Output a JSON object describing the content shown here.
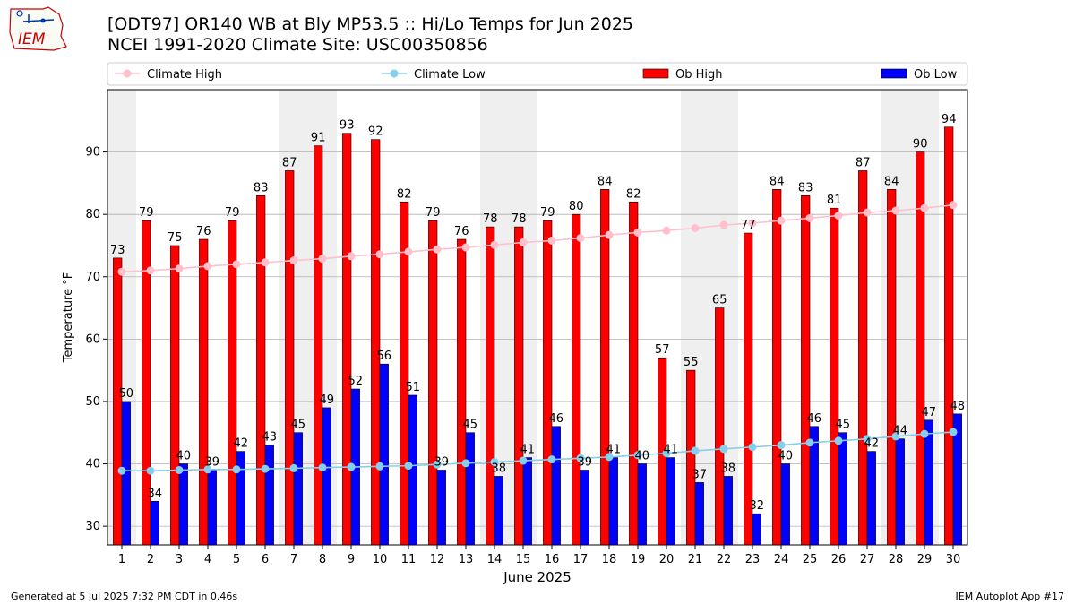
{
  "header": {
    "title_line1": "[ODT97] OR140 WB at Bly MP53.5  :: Hi/Lo Temps for Jun 2025",
    "title_line2": "NCEI 1991-2020 Climate Site: USC00350856",
    "logo_text": "IEM"
  },
  "footer": {
    "left": "Generated at 5 Jul 2025 7:32 PM CDT in 0.46s",
    "right": "IEM Autoplot App #17"
  },
  "colors": {
    "ob_high": "#ff0000",
    "ob_low": "#0000ff",
    "climate_high": "#ffc0cb",
    "climate_low": "#87ceeb",
    "weekend_shade": "#efefef",
    "grid": "#b0b0b0"
  },
  "chart_data": {
    "type": "bar",
    "xlabel": "June 2025",
    "ylabel": "Temperature °F",
    "ylim": [
      27,
      100
    ],
    "yticks": [
      30,
      40,
      50,
      60,
      70,
      80,
      90
    ],
    "grid": "horizontal",
    "legend_position": "top",
    "categories": [
      1,
      2,
      3,
      4,
      5,
      6,
      7,
      8,
      9,
      10,
      11,
      12,
      13,
      14,
      15,
      16,
      17,
      18,
      19,
      20,
      21,
      22,
      23,
      24,
      25,
      26,
      27,
      28,
      29,
      30
    ],
    "weekend_shaded_days": [
      1,
      7,
      8,
      14,
      15,
      21,
      22,
      28,
      29
    ],
    "series": [
      {
        "name": "Climate High",
        "kind": "line",
        "values": [
          70.8,
          71.0,
          71.3,
          71.7,
          72.0,
          72.3,
          72.6,
          72.9,
          73.3,
          73.6,
          74.0,
          74.4,
          74.7,
          75.1,
          75.5,
          75.8,
          76.2,
          76.7,
          77.1,
          77.4,
          77.8,
          78.3,
          78.6,
          79.0,
          79.4,
          79.8,
          80.3,
          80.6,
          81.0,
          81.5
        ]
      },
      {
        "name": "Climate Low",
        "kind": "line",
        "values": [
          38.9,
          38.9,
          39.0,
          39.1,
          39.1,
          39.2,
          39.3,
          39.4,
          39.5,
          39.6,
          39.7,
          39.9,
          40.1,
          40.3,
          40.5,
          40.7,
          40.9,
          41.1,
          41.4,
          41.7,
          42.1,
          42.4,
          42.7,
          43.0,
          43.4,
          43.7,
          44.0,
          44.4,
          44.8,
          45.1
        ]
      },
      {
        "name": "Ob High",
        "kind": "bar",
        "values": [
          73,
          79,
          75,
          76,
          79,
          83,
          87,
          91,
          93,
          92,
          82,
          79,
          76,
          78,
          78,
          79,
          80,
          84,
          82,
          57,
          55,
          65,
          77,
          84,
          83,
          81,
          87,
          84,
          90,
          94
        ]
      },
      {
        "name": "Ob Low",
        "kind": "bar",
        "values": [
          50,
          34,
          40,
          39,
          42,
          43,
          45,
          49,
          52,
          56,
          51,
          39,
          45,
          38,
          41,
          46,
          39,
          41,
          40,
          41,
          37,
          38,
          32,
          40,
          46,
          45,
          42,
          44,
          47,
          48
        ]
      }
    ]
  }
}
